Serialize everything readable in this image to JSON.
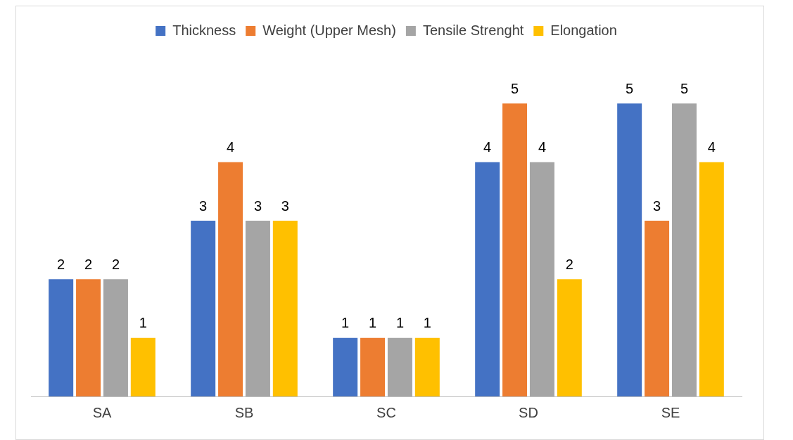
{
  "chart_data": {
    "type": "bar",
    "categories": [
      "SA",
      "SB",
      "SC",
      "SD",
      "SE"
    ],
    "series": [
      {
        "name": "Thickness",
        "color": "#4472c4",
        "values": [
          2,
          3,
          1,
          4,
          5
        ]
      },
      {
        "name": "Weight (Upper Mesh)",
        "color": "#ed7d31",
        "values": [
          2,
          4,
          1,
          5,
          3
        ]
      },
      {
        "name": "Tensile Strenght",
        "color": "#a5a5a5",
        "values": [
          2,
          3,
          1,
          4,
          5
        ]
      },
      {
        "name": "Elongation",
        "color": "#ffc000",
        "values": [
          1,
          3,
          1,
          2,
          4
        ]
      }
    ],
    "data_labels": true,
    "legend": "top",
    "grid": false
  }
}
